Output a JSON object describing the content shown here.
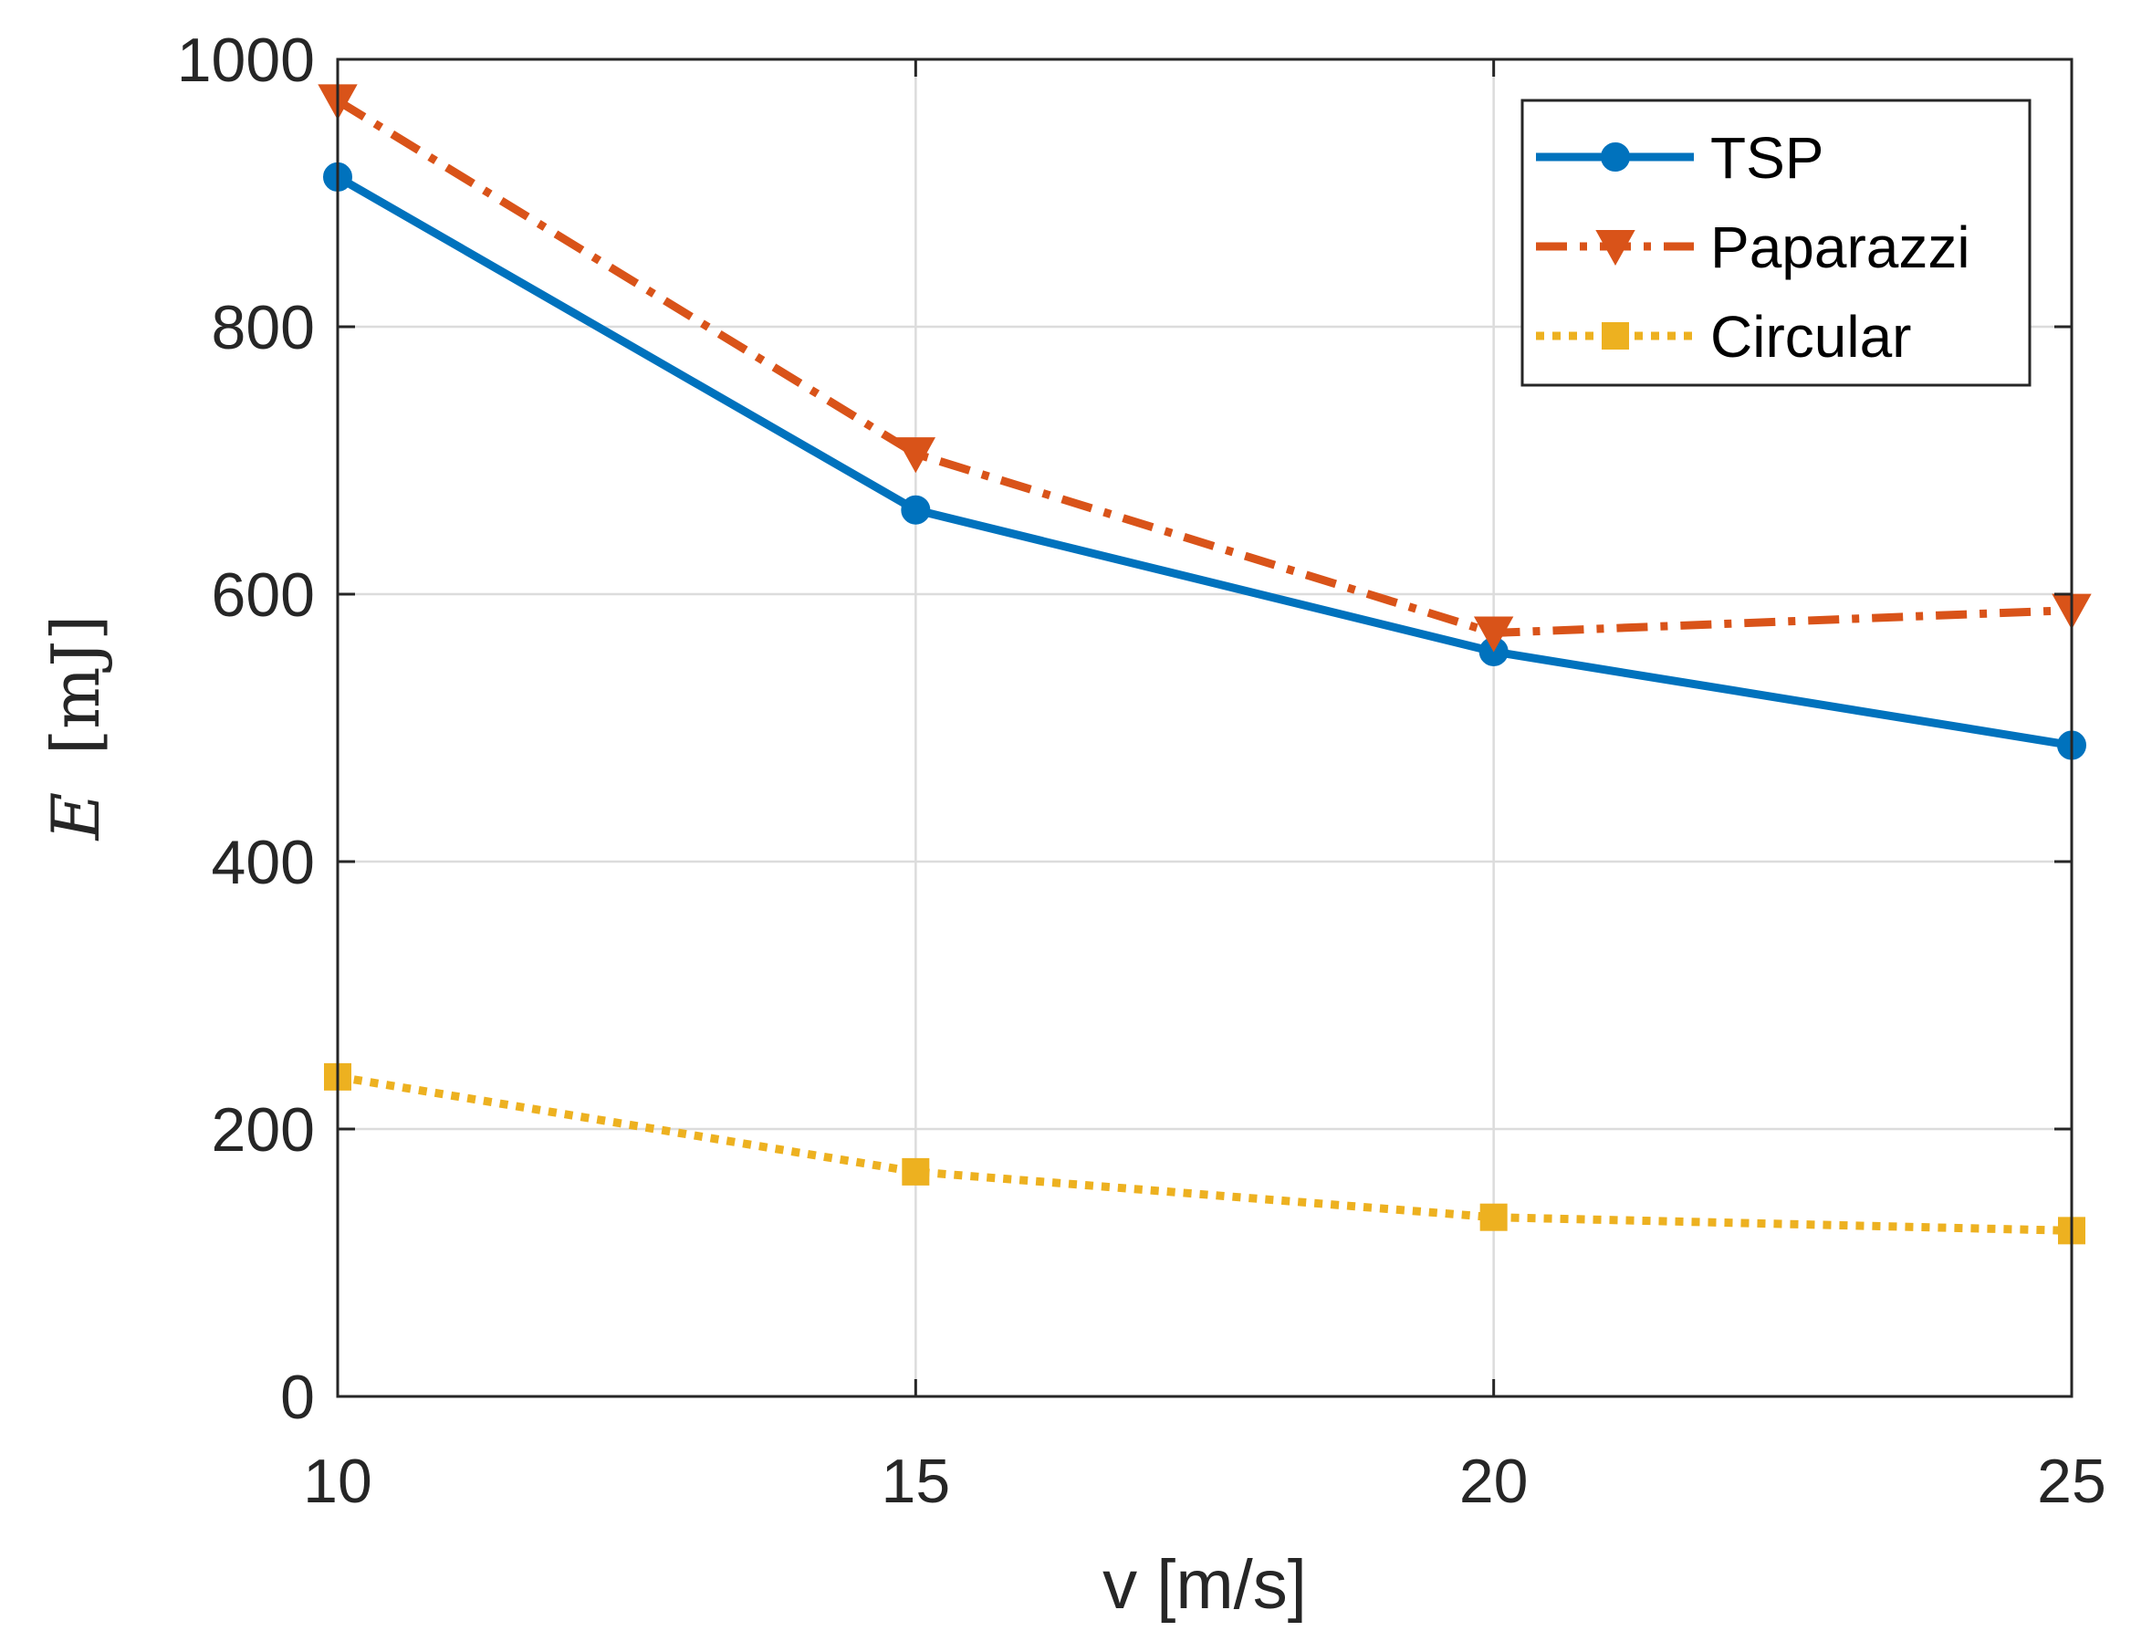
{
  "chart_data": {
    "type": "line",
    "xlabel": "v [m/s]",
    "ylabel": {
      "symbol": "E",
      "unit": "[mJ]"
    },
    "xlim": [
      10,
      25
    ],
    "ylim": [
      0,
      1000
    ],
    "x_ticks": [
      "10",
      "15",
      "20",
      "25"
    ],
    "y_ticks": [
      "0",
      "200",
      "400",
      "600",
      "800",
      "1000"
    ],
    "x_tick_values": [
      10,
      15,
      20,
      25
    ],
    "y_tick_values": [
      0,
      200,
      400,
      600,
      800,
      1000
    ],
    "grid": true,
    "legend_position": "top-right",
    "x": [
      10,
      15,
      20,
      25
    ],
    "series": [
      {
        "name": "TSP",
        "values": [
          912,
          663,
          557,
          487
        ],
        "color": "#0072BD",
        "line_style": "solid",
        "marker": "circle"
      },
      {
        "name": "Paparazzi",
        "values": [
          969,
          705,
          571,
          588
        ],
        "color": "#D95319",
        "line_style": "dash-dot",
        "marker": "triangle-down"
      },
      {
        "name": "Circular",
        "values": [
          239,
          168,
          134,
          124
        ],
        "color": "#EDB120",
        "line_style": "dotted",
        "marker": "square"
      }
    ]
  }
}
